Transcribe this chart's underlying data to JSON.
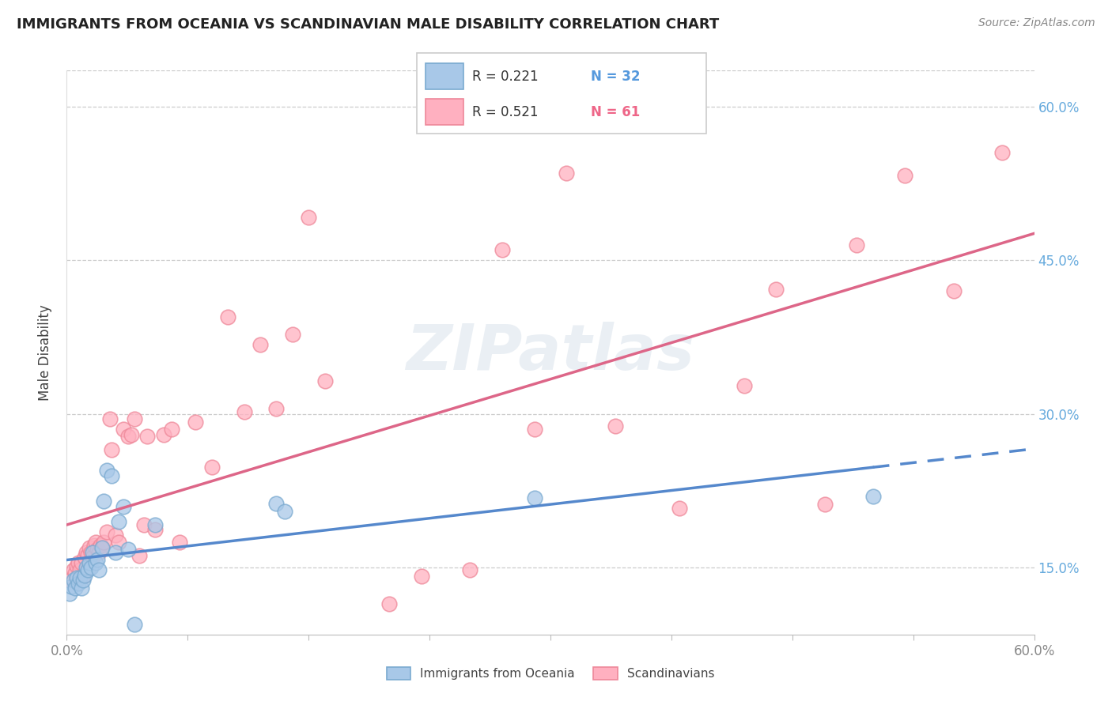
{
  "title": "IMMIGRANTS FROM OCEANIA VS SCANDINAVIAN MALE DISABILITY CORRELATION CHART",
  "source": "Source: ZipAtlas.com",
  "ylabel": "Male Disability",
  "y_ticks": [
    0.15,
    0.3,
    0.45,
    0.6
  ],
  "y_tick_labels": [
    "15.0%",
    "30.0%",
    "45.0%",
    "60.0%"
  ],
  "x_min": 0.0,
  "x_max": 0.6,
  "y_min": 0.085,
  "y_max": 0.635,
  "legend_label1": "Immigrants from Oceania",
  "legend_label2": "Scandinavians",
  "r1": 0.221,
  "n1": 32,
  "r2": 0.521,
  "n2": 61,
  "blue_fill": "#A8C8E8",
  "blue_edge": "#7AAAD0",
  "pink_fill": "#FFB0C0",
  "pink_edge": "#EE8899",
  "blue_line": "#5588CC",
  "pink_line": "#DD6688",
  "blue_points_x": [
    0.002,
    0.003,
    0.004,
    0.005,
    0.006,
    0.007,
    0.008,
    0.009,
    0.01,
    0.011,
    0.012,
    0.013,
    0.014,
    0.015,
    0.016,
    0.018,
    0.019,
    0.02,
    0.022,
    0.023,
    0.025,
    0.028,
    0.03,
    0.032,
    0.035,
    0.038,
    0.042,
    0.055,
    0.13,
    0.135,
    0.29,
    0.5
  ],
  "blue_points_y": [
    0.125,
    0.132,
    0.138,
    0.13,
    0.14,
    0.135,
    0.14,
    0.13,
    0.138,
    0.143,
    0.15,
    0.148,
    0.155,
    0.15,
    0.165,
    0.155,
    0.158,
    0.148,
    0.17,
    0.215,
    0.245,
    0.24,
    0.165,
    0.195,
    0.21,
    0.168,
    0.095,
    0.192,
    0.213,
    0.205,
    0.218,
    0.22
  ],
  "pink_points_x": [
    0.002,
    0.004,
    0.005,
    0.006,
    0.007,
    0.008,
    0.009,
    0.01,
    0.011,
    0.012,
    0.013,
    0.014,
    0.015,
    0.016,
    0.017,
    0.018,
    0.019,
    0.02,
    0.021,
    0.022,
    0.023,
    0.025,
    0.027,
    0.028,
    0.03,
    0.032,
    0.035,
    0.038,
    0.04,
    0.042,
    0.045,
    0.048,
    0.05,
    0.055,
    0.06,
    0.065,
    0.07,
    0.08,
    0.09,
    0.1,
    0.11,
    0.12,
    0.13,
    0.14,
    0.15,
    0.16,
    0.2,
    0.22,
    0.25,
    0.27,
    0.29,
    0.31,
    0.34,
    0.38,
    0.42,
    0.44,
    0.47,
    0.49,
    0.52,
    0.55,
    0.58
  ],
  "pink_points_y": [
    0.138,
    0.148,
    0.145,
    0.152,
    0.155,
    0.148,
    0.155,
    0.142,
    0.16,
    0.165,
    0.163,
    0.17,
    0.165,
    0.16,
    0.172,
    0.175,
    0.168,
    0.165,
    0.172,
    0.17,
    0.175,
    0.185,
    0.295,
    0.265,
    0.182,
    0.175,
    0.285,
    0.278,
    0.28,
    0.295,
    0.162,
    0.192,
    0.278,
    0.187,
    0.28,
    0.285,
    0.175,
    0.292,
    0.248,
    0.395,
    0.302,
    0.368,
    0.305,
    0.378,
    0.492,
    0.332,
    0.115,
    0.142,
    0.148,
    0.46,
    0.285,
    0.535,
    0.288,
    0.208,
    0.328,
    0.422,
    0.212,
    0.465,
    0.533,
    0.42,
    0.555
  ]
}
